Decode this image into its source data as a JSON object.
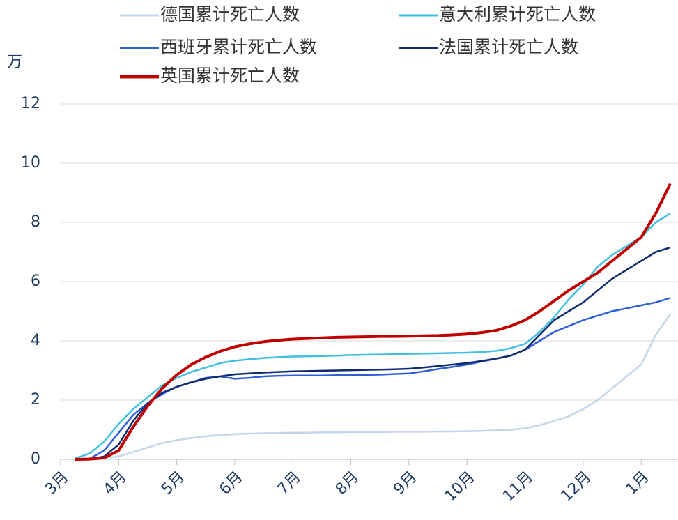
{
  "chart_data": {
    "type": "line",
    "y_unit_label": "万",
    "categories": [
      "3月",
      null,
      null,
      null,
      "4月",
      null,
      null,
      null,
      "5月",
      null,
      null,
      null,
      "6月",
      null,
      null,
      null,
      "7月",
      null,
      null,
      null,
      "8月",
      null,
      null,
      null,
      "9月",
      null,
      null,
      null,
      "10月",
      null,
      null,
      null,
      "11月",
      null,
      null,
      null,
      "12月",
      null,
      null,
      null,
      "1月",
      null,
      null
    ],
    "ylim": [
      0,
      12
    ],
    "yticks": [
      0,
      2,
      4,
      6,
      8,
      10,
      12
    ],
    "grid": true,
    "legend": "top",
    "series": [
      {
        "name": "德国累计死亡人数",
        "color": "#c5d5ea",
        "values": [
          null,
          0,
          0.01,
          0.05,
          0.1,
          0.25,
          0.4,
          0.55,
          0.65,
          0.72,
          0.78,
          0.82,
          0.85,
          0.87,
          0.88,
          0.89,
          0.9,
          0.9,
          0.91,
          0.91,
          0.92,
          0.92,
          0.92,
          0.93,
          0.93,
          0.93,
          0.94,
          0.94,
          0.95,
          0.96,
          0.98,
          1.0,
          1.05,
          1.15,
          1.3,
          1.45,
          1.7,
          2.0,
          2.4,
          2.8,
          3.2,
          4.2,
          4.9
        ]
      },
      {
        "name": "意大利累计死亡人数",
        "color": "#3fc0e0",
        "values": [
          null,
          0.03,
          0.2,
          0.6,
          1.2,
          1.7,
          2.1,
          2.5,
          2.75,
          2.95,
          3.1,
          3.25,
          3.33,
          3.38,
          3.42,
          3.45,
          3.47,
          3.48,
          3.49,
          3.5,
          3.52,
          3.53,
          3.54,
          3.55,
          3.56,
          3.57,
          3.58,
          3.59,
          3.6,
          3.62,
          3.66,
          3.75,
          3.9,
          4.3,
          4.8,
          5.4,
          5.9,
          6.5,
          6.9,
          7.2,
          7.5,
          8.0,
          8.3
        ]
      },
      {
        "name": "西班牙累计死亡人数",
        "color": "#2f5fd8",
        "values": [
          null,
          0,
          0.02,
          0.3,
          0.9,
          1.5,
          1.9,
          2.2,
          2.45,
          2.6,
          2.75,
          2.8,
          2.72,
          2.75,
          2.8,
          2.82,
          2.83,
          2.83,
          2.83,
          2.84,
          2.84,
          2.85,
          2.86,
          2.88,
          2.9,
          2.97,
          3.05,
          3.12,
          3.2,
          3.3,
          3.4,
          3.5,
          3.7,
          4.0,
          4.3,
          4.5,
          4.7,
          4.85,
          5.0,
          5.1,
          5.2,
          5.3,
          5.45
        ]
      },
      {
        "name": "法国累计死亡人数",
        "color": "#0d2b6e",
        "values": [
          null,
          0,
          0.01,
          0.1,
          0.5,
          1.3,
          1.9,
          2.25,
          2.45,
          2.6,
          2.72,
          2.8,
          2.87,
          2.9,
          2.93,
          2.95,
          2.97,
          2.98,
          2.99,
          3.0,
          3.01,
          3.02,
          3.03,
          3.04,
          3.06,
          3.1,
          3.15,
          3.2,
          3.25,
          3.32,
          3.4,
          3.5,
          3.7,
          4.2,
          4.7,
          5.0,
          5.3,
          5.7,
          6.1,
          6.4,
          6.7,
          7.0,
          7.15
        ]
      },
      {
        "name": "英国累计死亡人数",
        "color": "#c00000",
        "values": [
          null,
          0,
          0.01,
          0.05,
          0.3,
          1.1,
          1.8,
          2.4,
          2.85,
          3.2,
          3.45,
          3.65,
          3.8,
          3.9,
          3.97,
          4.02,
          4.06,
          4.08,
          4.1,
          4.12,
          4.13,
          4.14,
          4.15,
          4.15,
          4.16,
          4.17,
          4.18,
          4.2,
          4.23,
          4.28,
          4.35,
          4.5,
          4.7,
          5.0,
          5.35,
          5.7,
          6.0,
          6.3,
          6.7,
          7.1,
          7.5,
          8.3,
          9.3
        ]
      }
    ]
  }
}
